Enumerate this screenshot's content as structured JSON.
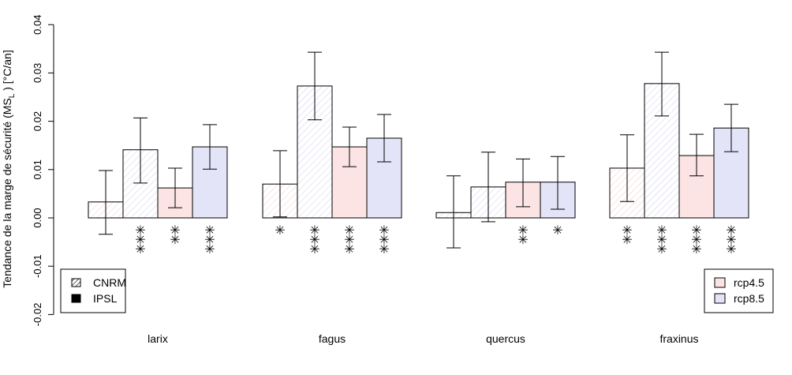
{
  "chart_data": {
    "type": "bar",
    "title": "",
    "xlabel": "",
    "ylabel_main": "Tendance de la marge de sécurité (MS",
    "ylabel_sub": "L",
    "ylabel_tail": " ) [°C/an]",
    "ylim": [
      -0.02,
      0.04
    ],
    "yticks": [
      "-0.02",
      "-0.01",
      "0.00",
      "0.01",
      "0.02",
      "0.03",
      "0.04"
    ],
    "grid": false,
    "categories": [
      "larix",
      "fagus",
      "quercus",
      "fraxinus"
    ],
    "series": [
      {
        "model": "CNRM",
        "scenario": "rcp4.5",
        "values": [
          0.0033,
          0.007,
          0.0011,
          0.0103
        ],
        "lower": [
          -0.0034,
          0.0002,
          -0.0062,
          0.0034
        ],
        "upper": [
          0.0098,
          0.0139,
          0.0087,
          0.0172
        ],
        "stars": [
          0,
          1,
          0,
          2
        ]
      },
      {
        "model": "CNRM",
        "scenario": "rcp8.5",
        "values": [
          0.0141,
          0.0273,
          0.0064,
          0.0278
        ],
        "lower": [
          0.0072,
          0.0203,
          -0.0008,
          0.0211
        ],
        "upper": [
          0.0207,
          0.0343,
          0.0136,
          0.0343
        ],
        "stars": [
          3,
          3,
          0,
          3
        ]
      },
      {
        "model": "IPSL",
        "scenario": "rcp4.5",
        "values": [
          0.0062,
          0.0147,
          0.0074,
          0.0129
        ],
        "lower": [
          0.0021,
          0.0106,
          0.0023,
          0.0087
        ],
        "upper": [
          0.0103,
          0.0188,
          0.0122,
          0.0173
        ],
        "stars": [
          2,
          3,
          2,
          3
        ]
      },
      {
        "model": "IPSL",
        "scenario": "rcp8.5",
        "values": [
          0.0147,
          0.0165,
          0.0074,
          0.0186
        ],
        "lower": [
          0.0101,
          0.0116,
          0.0018,
          0.0137
        ],
        "upper": [
          0.0193,
          0.0214,
          0.0127,
          0.0235
        ],
        "stars": [
          3,
          3,
          1,
          3
        ]
      }
    ],
    "legend_model": {
      "placement": "bottom-left",
      "items": [
        {
          "label": "CNRM",
          "style": "hatched"
        },
        {
          "label": "IPSL",
          "style": "solid"
        }
      ]
    },
    "legend_scenario": {
      "placement": "bottom-right",
      "items": [
        {
          "label": "rcp4.5",
          "color": "#fde4e4"
        },
        {
          "label": "rcp8.5",
          "color": "#e4e4f9"
        }
      ]
    },
    "star_glyph": "✳"
  }
}
